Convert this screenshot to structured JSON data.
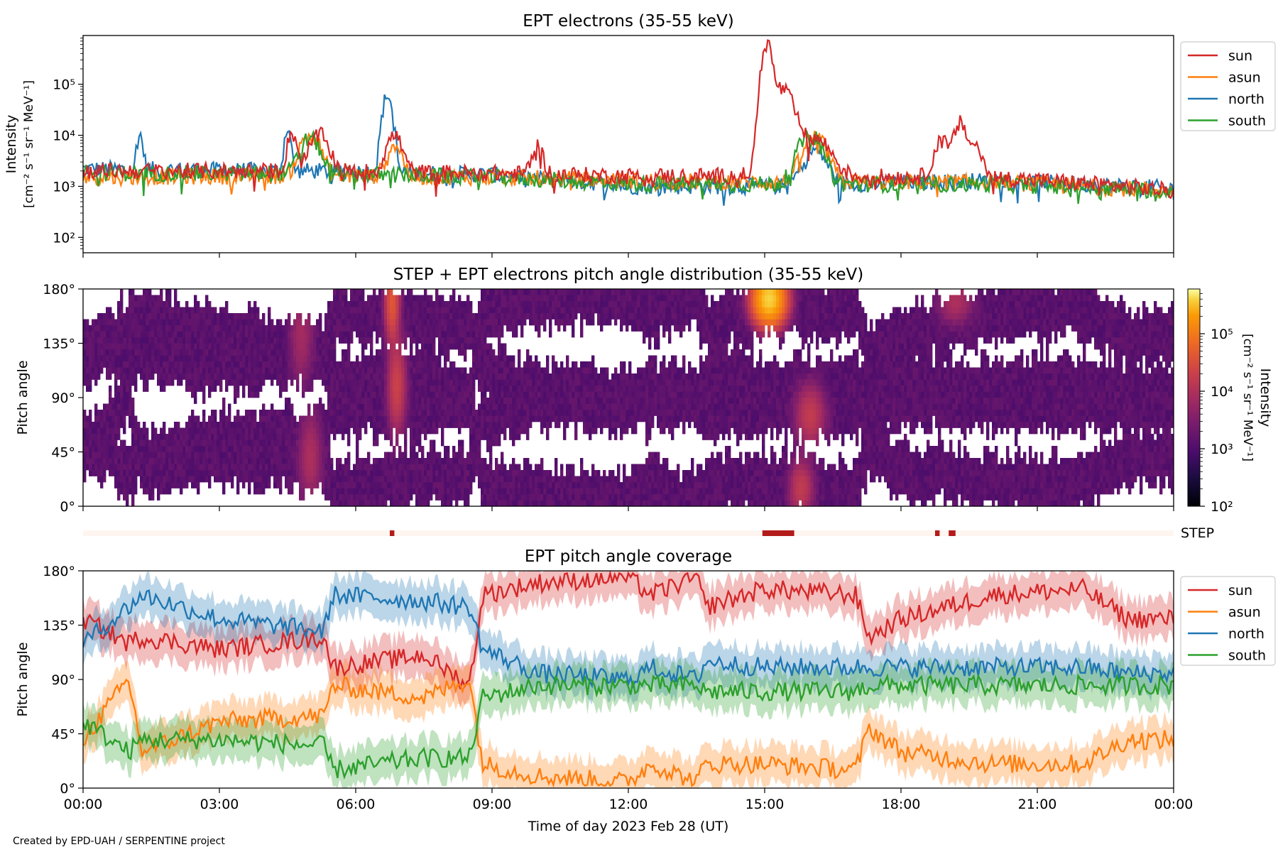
{
  "footer": "Created by EPD-UAH / SERPENTINE project",
  "chart_data": [
    {
      "type": "line",
      "title": "EPT electrons (35-55 keV)",
      "ylabel_line1": "Intensity",
      "ylabel_line2": "[cm⁻² s⁻¹ sr⁻¹ MeV⁻¹]",
      "yscale": "log",
      "ylim": [
        50,
        900000
      ],
      "ytick_labels": [
        "10²",
        "10³",
        "10⁴",
        "10⁵"
      ],
      "yticks": [
        100,
        1000,
        10000,
        100000
      ],
      "xlim": [
        0,
        24
      ],
      "legend_position": "right-outside-top",
      "series": [
        {
          "name": "sun",
          "color": "#d62728",
          "baseline": [
            [
              0,
              2000
            ],
            [
              5,
              2000
            ],
            [
              9,
              1800
            ],
            [
              12,
              1600
            ],
            [
              15,
              1600
            ],
            [
              20,
              1500
            ],
            [
              24,
              800
            ]
          ],
          "peaks": [
            [
              4.6,
              9000,
              0.12
            ],
            [
              5.2,
              8000,
              0.25
            ],
            [
              6.85,
              8000,
              0.2
            ],
            [
              10.0,
              4000,
              0.15
            ],
            [
              15.05,
              600000,
              0.12
            ],
            [
              15.35,
              80000,
              0.3
            ],
            [
              16.1,
              7000,
              0.4
            ],
            [
              18.9,
              6000,
              0.2
            ],
            [
              19.3,
              15000,
              0.15
            ],
            [
              19.6,
              5000,
              0.2
            ]
          ]
        },
        {
          "name": "asun",
          "color": "#ff7f0e",
          "baseline": [
            [
              0,
              1500
            ],
            [
              5,
              1600
            ],
            [
              9,
              1500
            ],
            [
              12,
              1300
            ],
            [
              15,
              1200
            ],
            [
              20,
              1200
            ],
            [
              24,
              800
            ]
          ],
          "peaks": [
            [
              5.0,
              9000,
              0.25
            ],
            [
              6.85,
              5000,
              0.2
            ],
            [
              16.1,
              8000,
              0.3
            ]
          ]
        },
        {
          "name": "north",
          "color": "#1f77b4",
          "baseline": [
            [
              0,
              2200
            ],
            [
              5,
              2000
            ],
            [
              9,
              1700
            ],
            [
              12,
              1000
            ],
            [
              15,
              1000
            ],
            [
              20,
              1300
            ],
            [
              24,
              900
            ]
          ],
          "peaks": [
            [
              1.25,
              8000,
              0.08
            ],
            [
              4.5,
              12000,
              0.08
            ],
            [
              6.7,
              60000,
              0.12
            ],
            [
              16.1,
              4000,
              0.3
            ]
          ]
        },
        {
          "name": "south",
          "color": "#2ca02c",
          "baseline": [
            [
              0,
              1800
            ],
            [
              5,
              1800
            ],
            [
              9,
              1500
            ],
            [
              12,
              1100
            ],
            [
              15,
              1100
            ],
            [
              20,
              1100
            ],
            [
              24,
              800
            ]
          ],
          "peaks": [
            [
              5.0,
              7000,
              0.25
            ],
            [
              16.0,
              9000,
              0.3
            ]
          ]
        }
      ]
    },
    {
      "type": "heatmap",
      "title": "STEP + EPT electrons pitch angle distribution (35-55 keV)",
      "ylabel": "Pitch angle",
      "ylim": [
        0,
        180
      ],
      "ytick_labels": [
        "0°",
        "45°",
        "90°",
        "135°",
        "180°"
      ],
      "xlim": [
        0,
        24
      ],
      "colorbar": {
        "label_line1": "Intensity",
        "label_line2": "[cm⁻² s⁻¹ sr⁻¹ MeV⁻¹]",
        "scale": "log",
        "range": [
          100,
          600000
        ],
        "tick_labels": [
          "10²",
          "10³",
          "10⁴",
          "10⁵"
        ],
        "colormap": "inferno"
      },
      "hotspots": [
        [
          6.8,
          170,
          0.12,
          25,
          40000
        ],
        [
          15.1,
          172,
          0.25,
          15,
          400000
        ],
        [
          16.0,
          75,
          0.25,
          20,
          15000
        ],
        [
          15.8,
          15,
          0.2,
          18,
          15000
        ],
        [
          5.0,
          40,
          0.2,
          30,
          8000
        ],
        [
          4.8,
          140,
          0.2,
          30,
          6000
        ],
        [
          19.2,
          170,
          0.3,
          15,
          8000
        ],
        [
          6.9,
          100,
          0.15,
          30,
          20000
        ]
      ]
    },
    {
      "type": "bar",
      "label": "STEP",
      "xlim": [
        0,
        24
      ],
      "active_intervals": [
        [
          6.75,
          6.85
        ],
        [
          14.95,
          15.65
        ],
        [
          18.75,
          18.85
        ],
        [
          19.05,
          19.2
        ]
      ]
    },
    {
      "type": "area",
      "title": "EPT pitch angle coverage",
      "ylabel": "Pitch angle",
      "xlabel": "Time of day 2023 Feb 28 (UT)",
      "ylim": [
        0,
        180
      ],
      "ytick_labels": [
        "0°",
        "45°",
        "90°",
        "135°",
        "180°"
      ],
      "xtick_labels": [
        "00:00",
        "03:00",
        "06:00",
        "09:00",
        "12:00",
        "15:00",
        "18:00",
        "21:00",
        "00:00"
      ],
      "xlim": [
        0,
        24
      ],
      "legend_position": "right-outside-top",
      "series": [
        {
          "name": "sun",
          "color": "#d62728",
          "y": [
            [
              0,
              140
            ],
            [
              1,
              120
            ],
            [
              1.3,
              125
            ],
            [
              3,
              115
            ],
            [
              5.3,
              125
            ],
            [
              5.5,
              100
            ],
            [
              7.5,
              110
            ],
            [
              8.5,
              85
            ],
            [
              8.8,
              160
            ],
            [
              10,
              170
            ],
            [
              12,
              175
            ],
            [
              12.5,
              160
            ],
            [
              13.5,
              175
            ],
            [
              13.7,
              150
            ],
            [
              15,
              165
            ],
            [
              17,
              160
            ],
            [
              17.3,
              125
            ],
            [
              18,
              140
            ],
            [
              20,
              160
            ],
            [
              22,
              165
            ],
            [
              23,
              140
            ],
            [
              24,
              140
            ]
          ]
        },
        {
          "name": "asun",
          "color": "#ff7f0e",
          "y": [
            [
              0,
              40
            ],
            [
              1,
              90
            ],
            [
              1.3,
              30
            ],
            [
              3,
              55
            ],
            [
              5.3,
              60
            ],
            [
              5.5,
              85
            ],
            [
              7.5,
              75
            ],
            [
              8.5,
              90
            ],
            [
              8.8,
              20
            ],
            [
              10,
              10
            ],
            [
              12,
              5
            ],
            [
              12.5,
              20
            ],
            [
              13.5,
              5
            ],
            [
              13.7,
              20
            ],
            [
              15,
              20
            ],
            [
              17,
              15
            ],
            [
              17.3,
              50
            ],
            [
              18,
              30
            ],
            [
              20,
              20
            ],
            [
              22,
              20
            ],
            [
              23,
              40
            ],
            [
              24,
              40
            ]
          ]
        },
        {
          "name": "north",
          "color": "#1f77b4",
          "y": [
            [
              0,
              120
            ],
            [
              1,
              150
            ],
            [
              1.3,
              160
            ],
            [
              3,
              140
            ],
            [
              5.3,
              130
            ],
            [
              5.5,
              160
            ],
            [
              7.5,
              155
            ],
            [
              8.5,
              150
            ],
            [
              8.8,
              115
            ],
            [
              10,
              95
            ],
            [
              12,
              90
            ],
            [
              12.5,
              100
            ],
            [
              13.5,
              90
            ],
            [
              13.7,
              105
            ],
            [
              15,
              100
            ],
            [
              17,
              100
            ],
            [
              17.3,
              100
            ],
            [
              18,
              100
            ],
            [
              20,
              100
            ],
            [
              22,
              100
            ],
            [
              23,
              95
            ],
            [
              24,
              95
            ]
          ]
        },
        {
          "name": "south",
          "color": "#2ca02c",
          "y": [
            [
              0,
              55
            ],
            [
              1,
              30
            ],
            [
              1.3,
              40
            ],
            [
              3,
              40
            ],
            [
              5.3,
              35
            ],
            [
              5.5,
              15
            ],
            [
              7.5,
              25
            ],
            [
              8.5,
              25
            ],
            [
              8.8,
              75
            ],
            [
              10,
              85
            ],
            [
              12,
              85
            ],
            [
              12.5,
              85
            ],
            [
              13.5,
              85
            ],
            [
              13.7,
              80
            ],
            [
              15,
              80
            ],
            [
              17,
              80
            ],
            [
              17.3,
              85
            ],
            [
              18,
              85
            ],
            [
              20,
              85
            ],
            [
              22,
              85
            ],
            [
              23,
              85
            ],
            [
              24,
              85
            ]
          ]
        }
      ]
    }
  ]
}
